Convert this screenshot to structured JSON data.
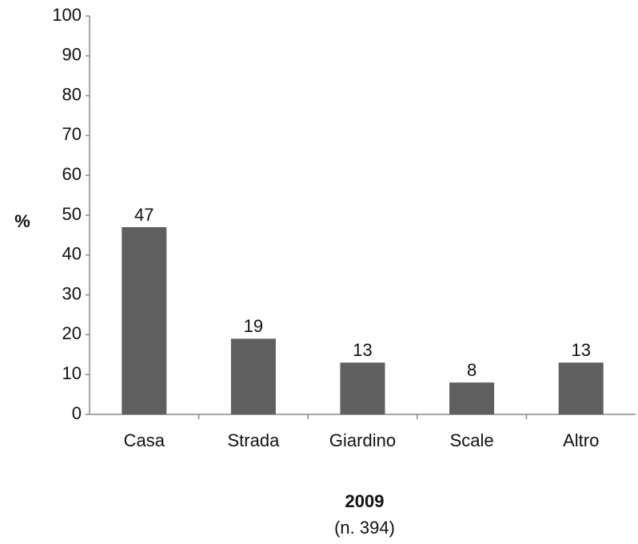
{
  "chart_data": {
    "type": "bar",
    "y_label": "%",
    "x_label": "2009",
    "subtitle": "(n. 394)",
    "categories": [
      "Casa",
      "Strada",
      "Giardino",
      "Scale",
      "Altro"
    ],
    "values": [
      47,
      19,
      13,
      8,
      13
    ],
    "color": "#5f5f5f",
    "ylim": [
      0,
      100
    ],
    "yticks": [
      0,
      10,
      20,
      30,
      40,
      50,
      60,
      70,
      80,
      90,
      100
    ],
    "grid": false
  }
}
